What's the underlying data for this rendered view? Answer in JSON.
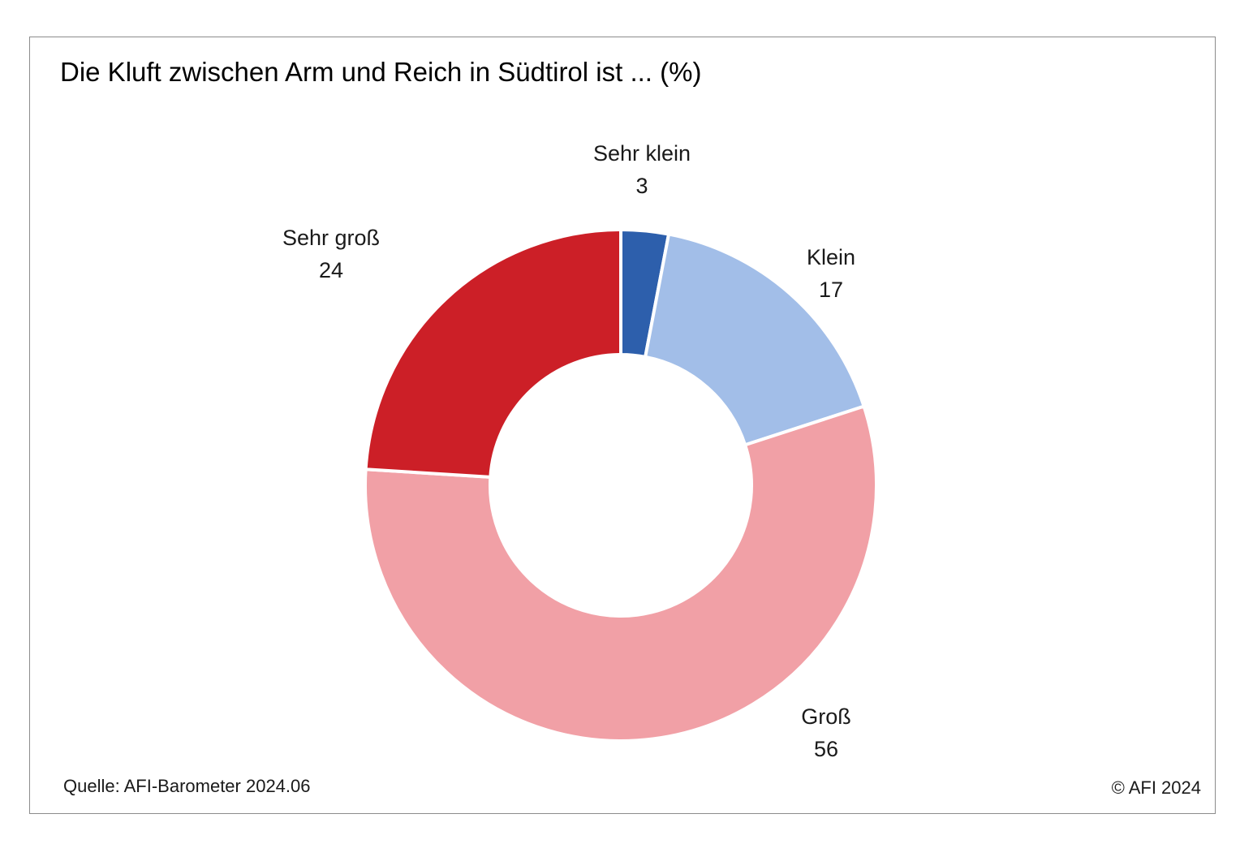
{
  "chart_data": {
    "type": "pie",
    "variant": "donut",
    "title": "Die Kluft zwischen Arm und Reich in Südtirol ist ... (%)",
    "categories": [
      "Sehr klein",
      "Klein",
      "Groß",
      "Sehr groß"
    ],
    "values": [
      3,
      17,
      56,
      24
    ],
    "colors": [
      "#2d5fac",
      "#a2bee8",
      "#f1a0a6",
      "#cc1f27"
    ],
    "legend": "none",
    "data_labels": "outside"
  },
  "footer": {
    "source": "Quelle: AFI-Barometer 2024.06",
    "copyright": "© AFI 2024"
  }
}
